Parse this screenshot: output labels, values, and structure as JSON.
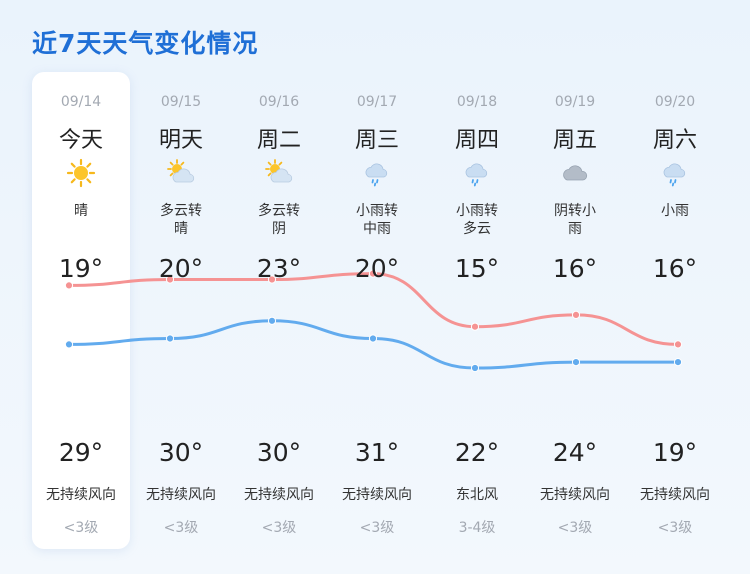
{
  "title": "近7天天气变化情况",
  "days": [
    {
      "date": "09/14",
      "weekday": "今天",
      "icon": "sun-icon",
      "desc_l1": "晴",
      "desc_l2": "",
      "high": "19°",
      "low": "29°",
      "wind": "无持续风向",
      "level": "<3级"
    },
    {
      "date": "09/15",
      "weekday": "明天",
      "icon": "partly-cloudy-icon",
      "desc_l1": "多云转",
      "desc_l2": "晴",
      "high": "20°",
      "low": "30°",
      "wind": "无持续风向",
      "level": "<3级"
    },
    {
      "date": "09/16",
      "weekday": "周二",
      "icon": "partly-cloudy-icon",
      "desc_l1": "多云转",
      "desc_l2": "阴",
      "high": "23°",
      "low": "30°",
      "wind": "无持续风向",
      "level": "<3级"
    },
    {
      "date": "09/17",
      "weekday": "周三",
      "icon": "rain-cloud-icon",
      "desc_l1": "小雨转",
      "desc_l2": "中雨",
      "high": "20°",
      "low": "31°",
      "wind": "无持续风向",
      "level": "<3级"
    },
    {
      "date": "09/18",
      "weekday": "周四",
      "icon": "rain-cloud-icon",
      "desc_l1": "小雨转",
      "desc_l2": "多云",
      "high": "15°",
      "low": "22°",
      "wind": "东北风",
      "level": "3-4级"
    },
    {
      "date": "09/19",
      "weekday": "周五",
      "icon": "overcast-cloud-icon",
      "desc_l1": "阴转小",
      "desc_l2": "雨",
      "high": "16°",
      "low": "24°",
      "wind": "无持续风向",
      "level": "<3级"
    },
    {
      "date": "09/20",
      "weekday": "周六",
      "icon": "rain-cloud-icon",
      "desc_l1": "小雨",
      "desc_l2": "",
      "high": "16°",
      "low": "19°",
      "wind": "无持续风向",
      "level": "<3级"
    }
  ],
  "chart_data": {
    "type": "line",
    "categories": [
      "09/14",
      "09/15",
      "09/16",
      "09/17",
      "09/18",
      "09/19",
      "09/20"
    ],
    "series": [
      {
        "values": [
          29,
          30,
          30,
          31,
          22,
          24,
          19
        ],
        "color": "#f59393"
      },
      {
        "values": [
          19,
          20,
          23,
          20,
          15,
          16,
          16
        ],
        "color": "#62abee"
      }
    ]
  }
}
